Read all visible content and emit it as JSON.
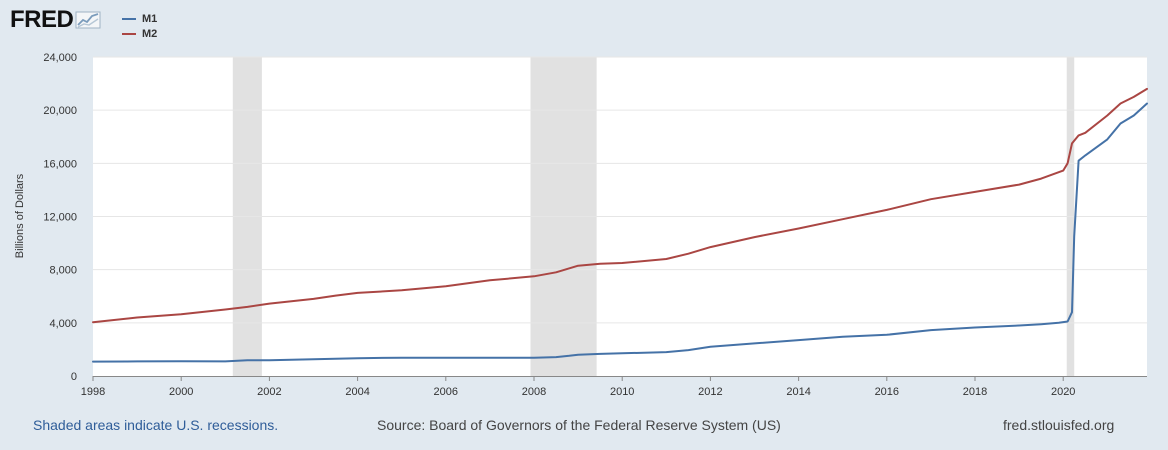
{
  "logo": {
    "text": "FRED",
    "icon": "chart-line-icon"
  },
  "chart_data": {
    "type": "line",
    "title": "",
    "xlabel": "",
    "ylabel": "Billions of Dollars",
    "xlim": [
      1998,
      2021.9
    ],
    "ylim": [
      0,
      24000
    ],
    "yticks": [
      0,
      4000,
      8000,
      12000,
      16000,
      20000,
      24000
    ],
    "ytick_labels": [
      "0",
      "4,000",
      "8,000",
      "12,000",
      "16,000",
      "20,000",
      "24,000"
    ],
    "xticks": [
      1998,
      2000,
      2002,
      2004,
      2006,
      2008,
      2010,
      2012,
      2014,
      2016,
      2018,
      2020
    ],
    "xtick_labels": [
      "1998",
      "2000",
      "2002",
      "2004",
      "2006",
      "2008",
      "2010",
      "2012",
      "2014",
      "2016",
      "2018",
      "2020"
    ],
    "recessions": [
      [
        2001.17,
        2001.83
      ],
      [
        2007.92,
        2009.42
      ],
      [
        2020.08,
        2020.25
      ]
    ],
    "grid": true,
    "series": [
      {
        "name": "M1",
        "color": "#4572a7",
        "x": [
          1998,
          1999,
          2000,
          2001,
          2001.5,
          2002,
          2003,
          2004,
          2005,
          2006,
          2007,
          2008,
          2008.5,
          2008.8,
          2009,
          2009.5,
          2010,
          2011,
          2011.5,
          2012,
          2013,
          2014,
          2015,
          2016,
          2017,
          2018,
          2019,
          2019.5,
          2019.9,
          2020.1,
          2020.2,
          2020.25,
          2020.35,
          2020.5,
          2021,
          2021.3,
          2021.6,
          2021.9
        ],
        "values": [
          1080,
          1100,
          1110,
          1100,
          1180,
          1190,
          1260,
          1340,
          1380,
          1380,
          1370,
          1380,
          1420,
          1520,
          1600,
          1660,
          1710,
          1800,
          1950,
          2200,
          2450,
          2700,
          2950,
          3100,
          3450,
          3650,
          3800,
          3900,
          4000,
          4100,
          4800,
          10500,
          16200,
          16600,
          17800,
          19000,
          19600,
          20500
        ]
      },
      {
        "name": "M2",
        "color": "#aa4643",
        "x": [
          1998,
          1999,
          2000,
          2001,
          2001.5,
          2002,
          2003,
          2003.5,
          2004,
          2005,
          2006,
          2007,
          2008,
          2008.5,
          2009,
          2009.5,
          2010,
          2011,
          2011.5,
          2012,
          2013,
          2014,
          2015,
          2016,
          2017,
          2018,
          2019,
          2019.5,
          2020,
          2020.1,
          2020.2,
          2020.35,
          2020.5,
          2021,
          2021.3,
          2021.6,
          2021.9
        ],
        "values": [
          4050,
          4400,
          4650,
          5000,
          5200,
          5450,
          5800,
          6050,
          6250,
          6450,
          6750,
          7200,
          7500,
          7800,
          8300,
          8450,
          8500,
          8800,
          9200,
          9700,
          10450,
          11100,
          11800,
          12500,
          13300,
          13850,
          14400,
          14850,
          15450,
          16000,
          17500,
          18100,
          18300,
          19600,
          20500,
          21000,
          21600
        ]
      }
    ]
  },
  "footer": {
    "recession_note": "Shaded areas indicate U.S. recessions.",
    "source": "Source: Board of Governors of the Federal Reserve System (US)",
    "site": "fred.stlouisfed.org"
  }
}
